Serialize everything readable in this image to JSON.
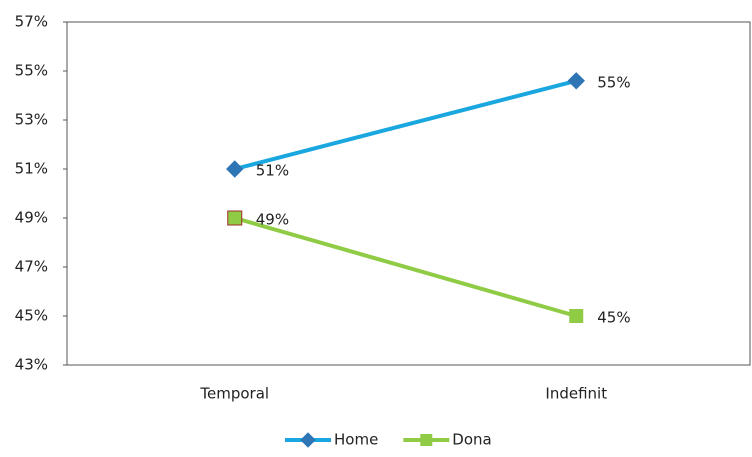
{
  "chart_data": {
    "type": "line",
    "categories": [
      "Temporal",
      "Indefinit"
    ],
    "series": [
      {
        "name": "Home",
        "color": "#1aa7e0",
        "marker_color": "#2e75b6",
        "marker": "diamond",
        "values": [
          51,
          54.6
        ],
        "value_labels": [
          "51%",
          "55%"
        ]
      },
      {
        "name": "Dona",
        "color": "#8fcb45",
        "marker_color": "#8fcb45",
        "marker": "square",
        "values": [
          49,
          45
        ],
        "value_labels": [
          "49%",
          "45%"
        ]
      }
    ],
    "ylim": [
      43,
      57
    ],
    "yticks": [
      {
        "value": 43,
        "label": "43%"
      },
      {
        "value": 45,
        "label": "45%"
      },
      {
        "value": 47,
        "label": "47%"
      },
      {
        "value": 49,
        "label": "49%"
      },
      {
        "value": 51,
        "label": "51%"
      },
      {
        "value": 53,
        "label": "53%"
      },
      {
        "value": 55,
        "label": "55%"
      },
      {
        "value": 57,
        "label": "57%"
      }
    ],
    "grid": false,
    "legend": "bottom"
  }
}
